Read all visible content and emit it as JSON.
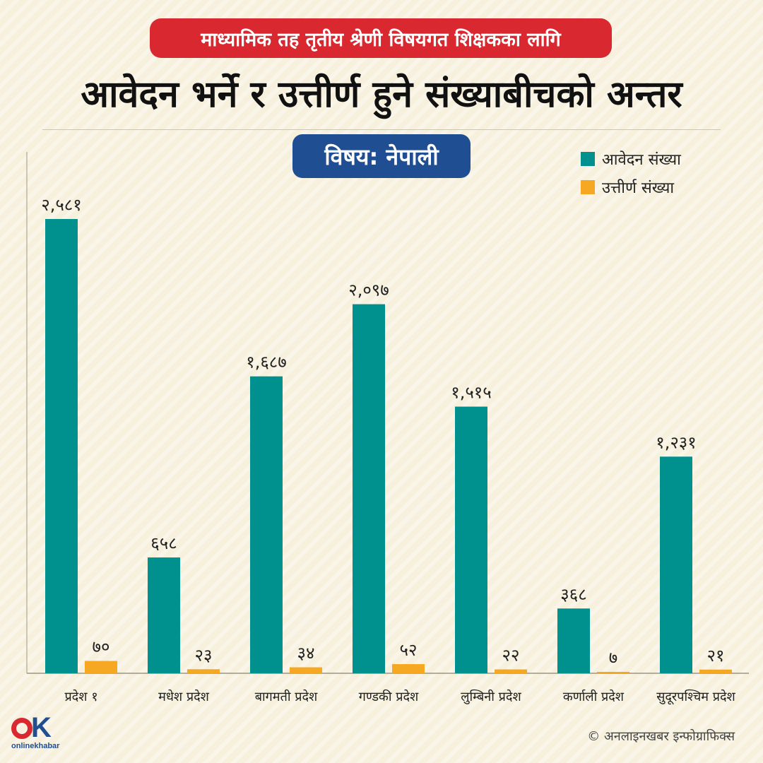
{
  "header": {
    "kicker": "माध्यामिक तह तृतीय श्रेणी विषयगत शिक्षकका लागि",
    "title": "आवेदन भर्ने र उत्तीर्ण हुने संख्याबीचको अन्तर",
    "subject": "विषय: नेपाली"
  },
  "colors": {
    "applicants": "#00918e",
    "passed": "#f7a823",
    "header_red": "#d9282f",
    "subject_blue": "#1f4f92"
  },
  "chart_data": {
    "type": "bar",
    "categories": [
      "प्रदेश १",
      "मधेश प्रदेश",
      "बागमती प्रदेश",
      "गण्डकी प्रदेश",
      "लुम्बिनी प्रदेश",
      "कर्णाली प्रदेश",
      "सुदूरपश्चिम प्रदेश"
    ],
    "series": [
      {
        "name": "आवेदन संख्या",
        "values": [
          2581,
          658,
          1687,
          2097,
          1515,
          368,
          1231
        ],
        "labels": [
          "२,५८१",
          "६५८",
          "१,६८७",
          "२,०९७",
          "१,५१५",
          "३६८",
          "१,२३१"
        ]
      },
      {
        "name": "उत्तीर्ण संख्या",
        "values": [
          70,
          23,
          34,
          52,
          22,
          7,
          21
        ],
        "labels": [
          "७०",
          "२३",
          "३४",
          "५२",
          "२२",
          "७",
          "२१"
        ]
      }
    ],
    "ylim": [
      0,
      2581
    ],
    "legend_position": "top-right",
    "grid": false
  },
  "footer": {
    "logo_text": "onlinekhabar",
    "credit": "© अनलाइनखबर इन्फोग्राफिक्स"
  }
}
